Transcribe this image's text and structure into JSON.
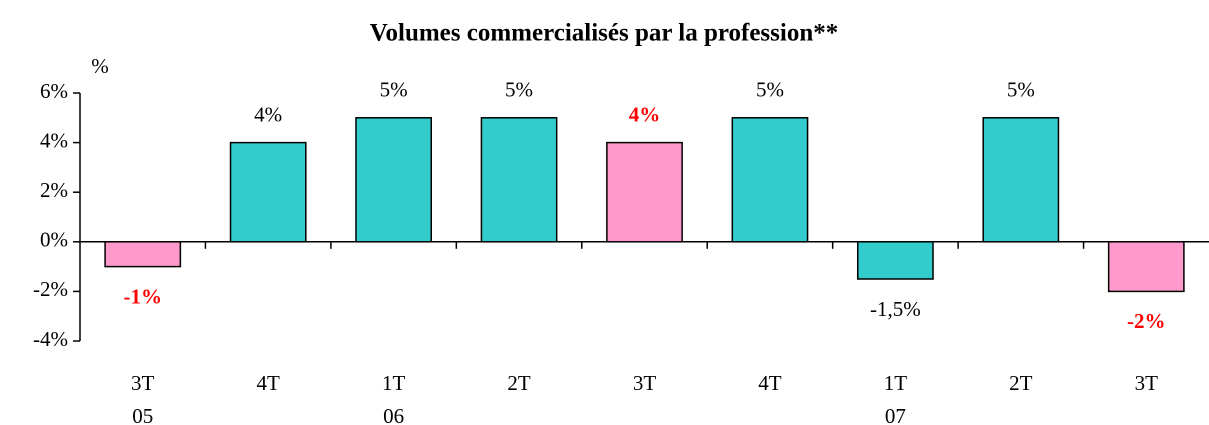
{
  "chart_data": {
    "type": "bar",
    "title": "Volumes commercialisés par la profession**",
    "y_axis_label": "%",
    "categories": [
      "3T",
      "4T",
      "1T",
      "2T",
      "3T",
      "4T",
      "1T",
      "2T",
      "3T"
    ],
    "category_years": [
      "05",
      null,
      "06",
      null,
      null,
      null,
      "07",
      null,
      null
    ],
    "values": [
      -1,
      4,
      5,
      5,
      4,
      5,
      -1.5,
      5,
      -2
    ],
    "value_labels": [
      "-1%",
      "4%",
      "5%",
      "5%",
      "4%",
      "5%",
      "-1,5%",
      "5%",
      "-2%"
    ],
    "colors": [
      "#ff99cc",
      "#33cccc",
      "#33cccc",
      "#33cccc",
      "#ff99cc",
      "#33cccc",
      "#33cccc",
      "#33cccc",
      "#ff99cc"
    ],
    "value_label_colors": [
      "#ff0000",
      "#000000",
      "#000000",
      "#000000",
      "#ff0000",
      "#000000",
      "#000000",
      "#000000",
      "#ff0000"
    ],
    "value_label_weights": [
      "bold",
      "normal",
      "normal",
      "normal",
      "bold",
      "normal",
      "normal",
      "normal",
      "bold"
    ],
    "ylim": [
      -4,
      6
    ],
    "yticks": [
      {
        "value": -4,
        "label": "-4%"
      },
      {
        "value": -2,
        "label": "-2%"
      },
      {
        "value": 0,
        "label": "0%"
      },
      {
        "value": 2,
        "label": "2%"
      },
      {
        "value": 4,
        "label": "4%"
      },
      {
        "value": 6,
        "label": "6%"
      }
    ],
    "grid": false
  }
}
